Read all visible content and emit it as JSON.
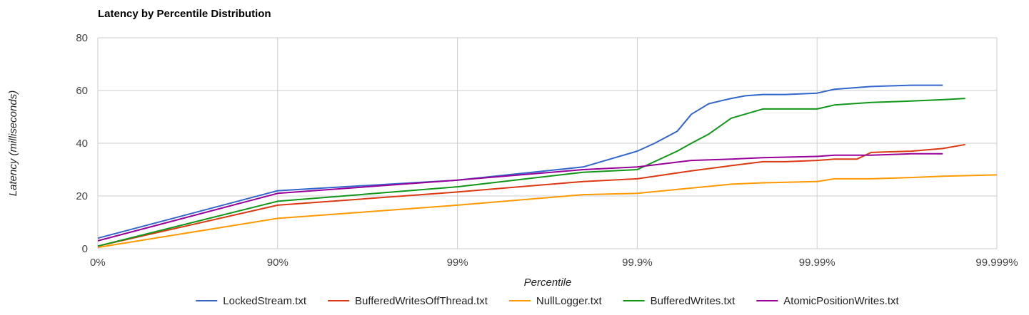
{
  "chart_data": {
    "type": "line",
    "title": "Latency by Percentile Distribution",
    "xlabel": "Percentile",
    "ylabel": "Latency (milliseconds)",
    "x_scale": "-log10(1 - percentile)",
    "x_ticks": [
      "0%",
      "90%",
      "99%",
      "99.9%",
      "99.99%",
      "99.999%"
    ],
    "y_ticks": [
      "0",
      "20",
      "40",
      "60",
      "80"
    ],
    "ylim": [
      0,
      80
    ],
    "grid": true,
    "legend_position": "bottom",
    "series": [
      {
        "name": "LockedStream.txt",
        "color": "#3366cc",
        "x": [
          0,
          90,
          99,
          99.8,
          99.9,
          99.92,
          99.94,
          99.95,
          99.96,
          99.97,
          99.975,
          99.98,
          99.985,
          99.99,
          99.992,
          99.995,
          99.997,
          99.998
        ],
        "y": [
          4,
          22,
          26,
          31,
          37,
          40,
          44.5,
          51,
          55,
          57,
          58,
          58.5,
          58.5,
          59,
          60.5,
          61.5,
          62,
          62
        ]
      },
      {
        "name": "BufferedWritesOffThread.txt",
        "color": "#dc3912",
        "x": [
          0,
          90,
          99,
          99.8,
          99.9,
          99.95,
          99.97,
          99.98,
          99.985,
          99.99,
          99.992,
          99.994,
          99.995,
          99.997,
          99.998,
          99.9985
        ],
        "y": [
          1,
          16.5,
          21.5,
          25.5,
          26.5,
          29.5,
          31.5,
          33,
          33,
          33.5,
          34,
          34,
          36.5,
          37,
          38,
          39.5
        ]
      },
      {
        "name": "NullLogger.txt",
        "color": "#ff9900",
        "x": [
          0,
          90,
          99,
          99.8,
          99.9,
          99.95,
          99.97,
          99.98,
          99.99,
          99.992,
          99.995,
          99.997,
          99.998,
          99.999
        ],
        "y": [
          0.5,
          11.5,
          16.5,
          20.5,
          21,
          23,
          24.5,
          25,
          25.5,
          26.5,
          26.5,
          27,
          27.5,
          28
        ]
      },
      {
        "name": "BufferedWrites.txt",
        "color": "#109618",
        "x": [
          0,
          90,
          99,
          99.8,
          99.9,
          99.94,
          99.95,
          99.96,
          99.97,
          99.98,
          99.99,
          99.992,
          99.995,
          99.997,
          99.998,
          99.9985
        ],
        "y": [
          1,
          18,
          23.5,
          29,
          30,
          37,
          40,
          43.5,
          49.5,
          53,
          53,
          54.5,
          55.5,
          56,
          56.5,
          57
        ]
      },
      {
        "name": "AtomicPositionWrites.txt",
        "color": "#990099",
        "x": [
          0,
          90,
          99,
          99.8,
          99.9,
          99.95,
          99.97,
          99.98,
          99.99,
          99.992,
          99.995,
          99.997,
          99.998
        ],
        "y": [
          3,
          21,
          26,
          30,
          31,
          33.5,
          34,
          34.5,
          35,
          35.5,
          35.5,
          36,
          36
        ]
      }
    ]
  }
}
